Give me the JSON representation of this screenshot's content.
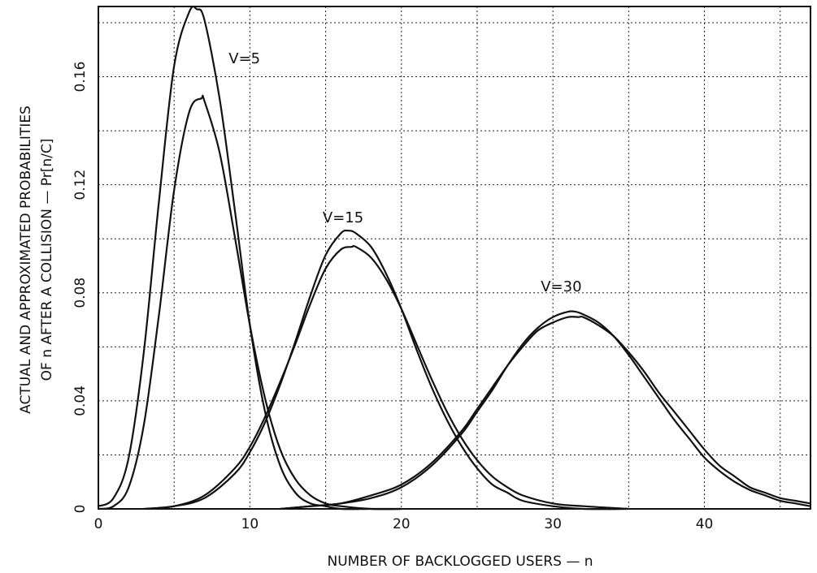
{
  "chart_data": {
    "type": "line",
    "title": "",
    "xlabel": "NUMBER OF BACKLOGGED USERS  —  n",
    "ylabel_line1": "ACTUAL AND APPROXIMATED PROBABILITIES",
    "ylabel_line2": "OF n AFTER A COLLISION   —   Pr[n/C]",
    "xlim": [
      0,
      47
    ],
    "ylim": [
      0,
      0.186
    ],
    "xticks": [
      0,
      10,
      20,
      30,
      40
    ],
    "xtick_labels": [
      "0",
      "10",
      "20",
      "30",
      "40"
    ],
    "yticks": [
      0,
      0.04,
      0.08,
      0.12,
      0.16
    ],
    "ytick_labels": [
      "0",
      "0.04",
      "0.08",
      "0.12",
      "0.16"
    ],
    "grid": true,
    "annotations": [
      {
        "text": "V=5",
        "x": 8.6,
        "y": 0.165
      },
      {
        "text": "V=15",
        "x": 14.8,
        "y": 0.106
      },
      {
        "text": "V=30",
        "x": 29.2,
        "y": 0.0805
      }
    ],
    "series": [
      {
        "group": "V=5",
        "x": [
          0,
          1,
          2,
          3,
          4,
          5,
          6,
          6.5,
          7,
          8,
          9,
          10,
          11,
          12,
          13,
          14,
          15,
          16,
          18,
          20
        ],
        "y": [
          0.001,
          0.004,
          0.019,
          0.058,
          0.114,
          0.164,
          0.184,
          0.185,
          0.181,
          0.152,
          0.111,
          0.068,
          0.036,
          0.016,
          0.006,
          0.002,
          0.001,
          0,
          0,
          0
        ]
      },
      {
        "group": "V=5",
        "x": [
          0,
          1,
          2,
          3,
          4,
          5,
          6,
          6.8,
          7,
          8,
          9,
          10,
          11,
          12,
          13,
          14,
          15,
          16,
          18,
          20
        ],
        "y": [
          0,
          0.001,
          0.008,
          0.031,
          0.072,
          0.118,
          0.147,
          0.152,
          0.151,
          0.132,
          0.101,
          0.068,
          0.041,
          0.022,
          0.011,
          0.005,
          0.002,
          0.001,
          0,
          0
        ]
      },
      {
        "group": "V=15",
        "x": [
          3,
          5,
          7,
          9,
          10,
          11,
          12,
          13,
          14,
          15,
          16,
          16.5,
          17,
          18,
          19,
          20,
          21,
          22,
          23,
          24,
          25,
          26,
          27,
          28,
          30,
          32,
          35
        ],
        "y": [
          0,
          0.001,
          0.004,
          0.013,
          0.021,
          0.032,
          0.046,
          0.062,
          0.079,
          0.094,
          0.102,
          0.103,
          0.102,
          0.097,
          0.087,
          0.074,
          0.059,
          0.045,
          0.033,
          0.023,
          0.015,
          0.009,
          0.006,
          0.003,
          0.001,
          0,
          0
        ]
      },
      {
        "group": "V=15",
        "x": [
          3,
          5,
          7,
          9,
          10,
          11,
          12,
          13,
          14,
          15,
          16,
          16.7,
          17,
          18,
          19,
          20,
          21,
          22,
          23,
          24,
          25,
          26,
          27,
          28,
          30,
          32,
          35
        ],
        "y": [
          0,
          0.001,
          0.005,
          0.015,
          0.023,
          0.034,
          0.047,
          0.061,
          0.076,
          0.089,
          0.096,
          0.097,
          0.097,
          0.093,
          0.085,
          0.074,
          0.061,
          0.048,
          0.036,
          0.026,
          0.018,
          0.012,
          0.008,
          0.005,
          0.002,
          0.001,
          0
        ]
      },
      {
        "group": "V=30",
        "x": [
          12,
          14,
          16,
          18,
          20,
          22,
          24,
          25,
          26,
          27,
          28,
          29,
          30,
          31,
          31.5,
          32,
          33,
          34,
          35,
          36,
          37,
          38,
          39,
          40,
          41,
          42,
          43,
          44,
          45,
          46,
          47
        ],
        "y": [
          0,
          0.001,
          0.002,
          0.004,
          0.008,
          0.016,
          0.028,
          0.036,
          0.044,
          0.053,
          0.061,
          0.067,
          0.071,
          0.073,
          0.073,
          0.072,
          0.069,
          0.064,
          0.057,
          0.049,
          0.041,
          0.033,
          0.026,
          0.019,
          0.014,
          0.01,
          0.007,
          0.005,
          0.003,
          0.002,
          0.001
        ]
      },
      {
        "group": "V=30",
        "x": [
          12,
          14,
          16,
          18,
          20,
          22,
          24,
          25,
          26,
          27,
          28,
          29,
          30,
          31,
          31.7,
          32,
          33,
          34,
          35,
          36,
          37,
          38,
          39,
          40,
          41,
          42,
          43,
          44,
          45,
          46,
          47
        ],
        "y": [
          0,
          0.001,
          0.002,
          0.005,
          0.009,
          0.017,
          0.029,
          0.037,
          0.045,
          0.053,
          0.06,
          0.066,
          0.069,
          0.071,
          0.071,
          0.071,
          0.068,
          0.064,
          0.058,
          0.051,
          0.043,
          0.036,
          0.029,
          0.022,
          0.016,
          0.012,
          0.008,
          0.006,
          0.004,
          0.003,
          0.002
        ]
      }
    ]
  }
}
